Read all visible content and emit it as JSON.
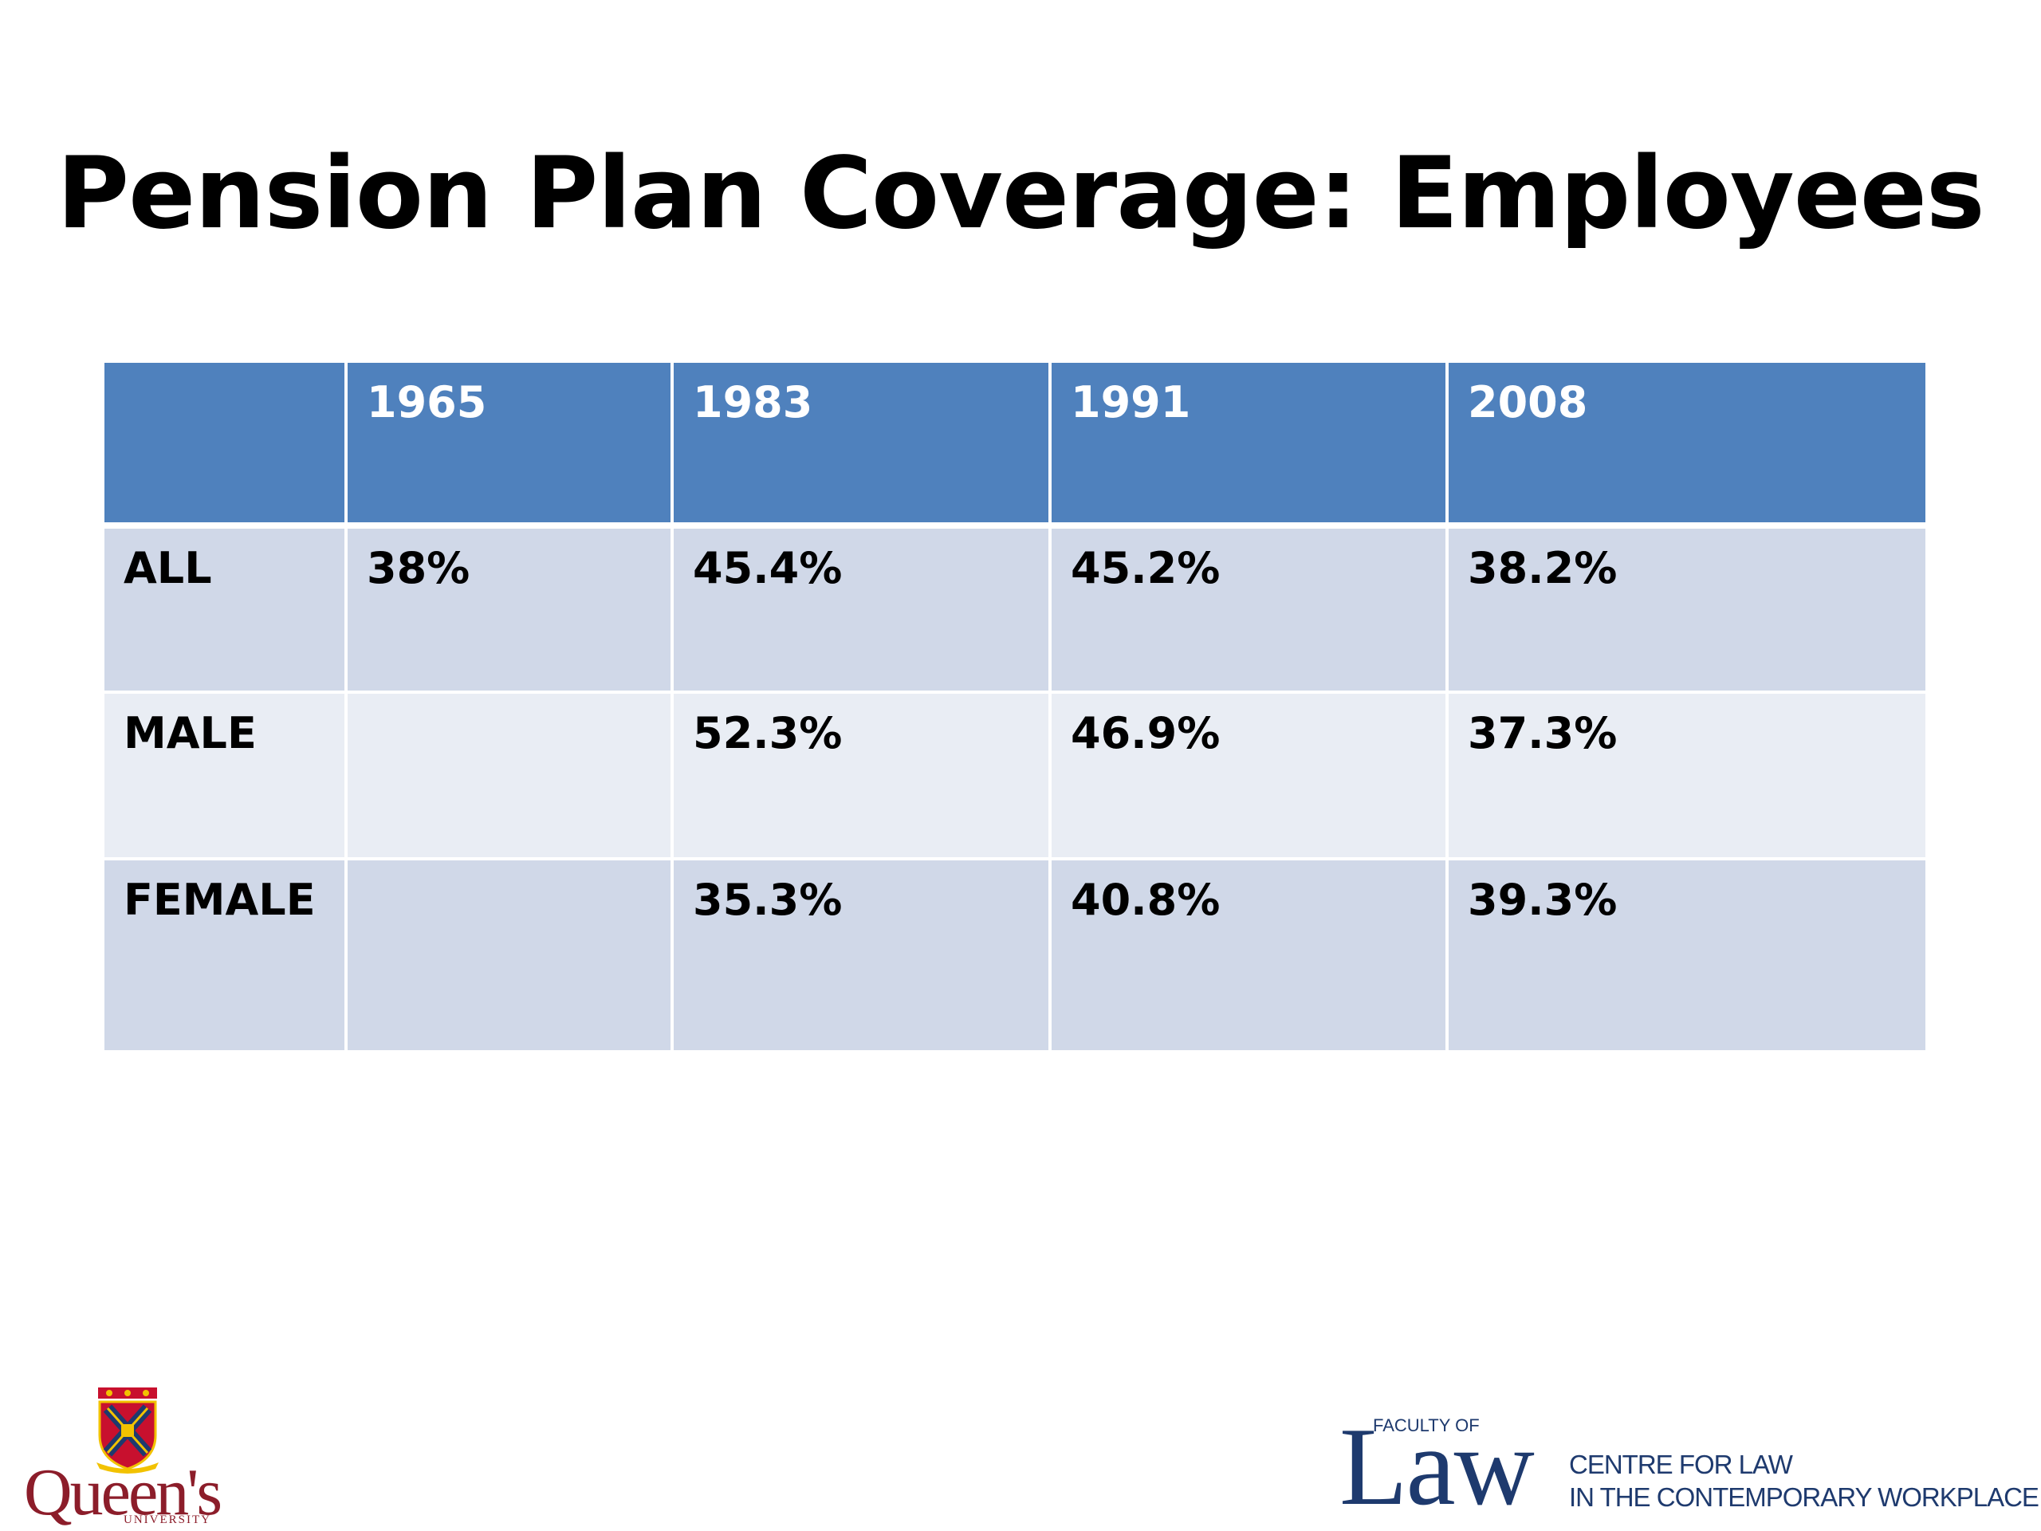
{
  "slide": {
    "title": "Pension Plan Coverage: Employees"
  },
  "table": {
    "header": [
      "",
      "1965",
      "1983",
      "1991",
      "2008"
    ],
    "rows": [
      {
        "label": "ALL",
        "cells": [
          "38%",
          "45.4%",
          "45.2%",
          "38.2%"
        ]
      },
      {
        "label": "MALE",
        "cells": [
          "",
          "52.3%",
          "46.9%",
          "37.3%"
        ]
      },
      {
        "label": "FEMALE",
        "cells": [
          "",
          "35.3%",
          "40.8%",
          "39.3%"
        ]
      }
    ]
  },
  "logos": {
    "queens": {
      "wordmark": "Queen's",
      "subtitle": "UNIVERSITY"
    },
    "law": {
      "small_caption": "FACULTY OF",
      "wordmark": "Law",
      "line1": "CENTRE FOR LAW",
      "line2": "IN THE CONTEMPORARY WORKPLACE"
    }
  },
  "colors": {
    "header_bg": "#4f81bd",
    "row_odd_bg": "#d0d8e8",
    "row_even_bg": "#e9edf4",
    "queens_red": "#8c1d2a",
    "law_blue": "#1e3a6e"
  }
}
